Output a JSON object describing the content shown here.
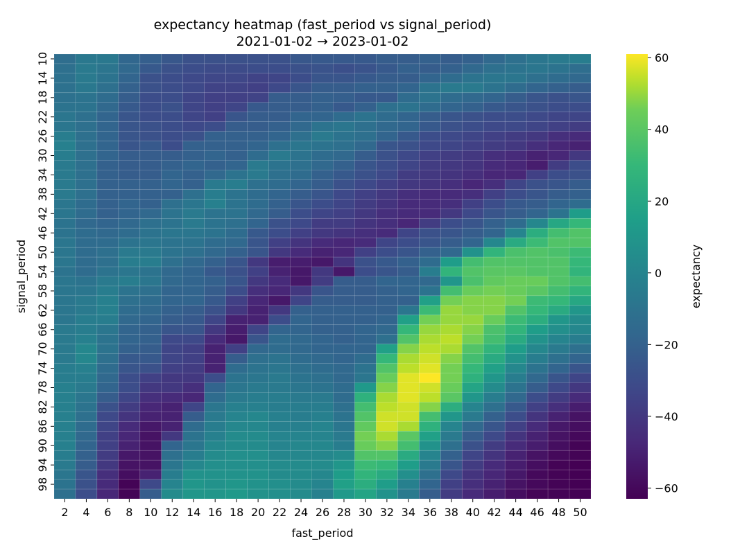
{
  "chart_data": {
    "type": "heatmap",
    "title": "expectancy heatmap (fast_period vs signal_period)",
    "subtitle": "2021-01-02 → 2023-01-02",
    "xlabel": "fast_period",
    "ylabel": "signal_period",
    "colorbar_label": "expectancy",
    "colormap": "viridis",
    "zlim": [
      -63,
      61
    ],
    "colorbar_ticks": [
      60,
      40,
      20,
      0,
      -20,
      -40,
      -60
    ],
    "colorbar_tick_labels": [
      "60",
      "40",
      "20",
      "0",
      "−20",
      "−40",
      "−60"
    ],
    "x": [
      2,
      4,
      6,
      8,
      10,
      12,
      14,
      16,
      18,
      20,
      22,
      24,
      26,
      28,
      30,
      32,
      34,
      36,
      38,
      40,
      42,
      44,
      46,
      48,
      50
    ],
    "y": [
      10,
      12,
      14,
      16,
      18,
      20,
      22,
      24,
      26,
      28,
      30,
      32,
      34,
      36,
      38,
      40,
      42,
      44,
      46,
      48,
      50,
      52,
      54,
      56,
      58,
      60,
      62,
      64,
      66,
      68,
      70,
      72,
      74,
      76,
      78,
      80,
      82,
      84,
      86,
      88,
      90,
      92,
      94,
      96,
      98,
      100
    ],
    "y_tick_labels": [
      "10",
      "14",
      "18",
      "22",
      "26",
      "30",
      "34",
      "38",
      "42",
      "46",
      "50",
      "54",
      "58",
      "62",
      "66",
      "70",
      "74",
      "78",
      "82",
      "86",
      "90",
      "94",
      "98"
    ],
    "values": [
      [
        -13,
        -7,
        -7,
        -17,
        -21,
        -25,
        -28,
        -28,
        -28,
        -28,
        -28,
        -25,
        -24,
        -24,
        -24,
        -22,
        -22,
        -20,
        -22,
        -20,
        -16,
        -12,
        -8,
        -6,
        -4
      ],
      [
        -12,
        -6,
        -9,
        -16,
        -24,
        -28,
        -30,
        -31,
        -31,
        -30,
        -30,
        -28,
        -27,
        -29,
        -27,
        -24,
        -20,
        -22,
        -20,
        -16,
        -12,
        -10,
        -8,
        -10,
        -13
      ],
      [
        -11,
        -6,
        -10,
        -18,
        -28,
        -30,
        -32,
        -33,
        -33,
        -35,
        -34,
        -30,
        -26,
        -26,
        -24,
        -22,
        -22,
        -18,
        -14,
        -10,
        -8,
        -8,
        -12,
        -14,
        -16
      ],
      [
        -11,
        -7,
        -12,
        -20,
        -28,
        -30,
        -32,
        -35,
        -35,
        -36,
        -32,
        -26,
        -22,
        -22,
        -20,
        -20,
        -18,
        -10,
        -6,
        -6,
        -10,
        -14,
        -18,
        -20,
        -22
      ],
      [
        -11,
        -10,
        -14,
        -22,
        -30,
        -30,
        -34,
        -36,
        -36,
        -35,
        -22,
        -22,
        -20,
        -21,
        -24,
        -24,
        -14,
        -10,
        -14,
        -16,
        -18,
        -22,
        -26,
        -28,
        -26
      ],
      [
        -10,
        -10,
        -16,
        -24,
        -30,
        -28,
        -34,
        -36,
        -34,
        -24,
        -22,
        -22,
        -20,
        -24,
        -20,
        -12,
        -10,
        -14,
        -18,
        -20,
        -24,
        -26,
        -28,
        -30,
        -30
      ],
      [
        -8,
        -12,
        -18,
        -26,
        -30,
        -30,
        -34,
        -36,
        -26,
        -22,
        -22,
        -18,
        -18,
        -14,
        -10,
        -14,
        -18,
        -22,
        -26,
        -28,
        -30,
        -30,
        -32,
        -34,
        -34
      ],
      [
        -8,
        -12,
        -18,
        -26,
        -28,
        -30,
        -32,
        -30,
        -22,
        -22,
        -20,
        -16,
        -10,
        -8,
        -12,
        -16,
        -18,
        -24,
        -28,
        -30,
        -32,
        -32,
        -34,
        -36,
        -38
      ],
      [
        -4,
        -12,
        -18,
        -26,
        -28,
        -30,
        -28,
        -20,
        -20,
        -20,
        -18,
        -12,
        -6,
        -10,
        -12,
        -18,
        -24,
        -30,
        -32,
        -34,
        -36,
        -38,
        -40,
        -44,
        -46
      ],
      [
        -2,
        -12,
        -18,
        -26,
        -24,
        -30,
        -20,
        -20,
        -20,
        -18,
        -12,
        -8,
        -10,
        -12,
        -16,
        -26,
        -28,
        -32,
        -34,
        -36,
        -38,
        -40,
        -44,
        -48,
        -50
      ],
      [
        -4,
        -12,
        -18,
        -22,
        -22,
        -22,
        -20,
        -18,
        -20,
        -14,
        -6,
        -10,
        -14,
        -16,
        -22,
        -28,
        -32,
        -36,
        -38,
        -40,
        -44,
        -46,
        -50,
        -48,
        -40
      ],
      [
        -6,
        -12,
        -20,
        -22,
        -22,
        -20,
        -18,
        -20,
        -18,
        -6,
        -10,
        -12,
        -16,
        -20,
        -26,
        -30,
        -34,
        -38,
        -40,
        -42,
        -46,
        -48,
        -52,
        -38,
        -30
      ],
      [
        -6,
        -12,
        -20,
        -22,
        -22,
        -18,
        -20,
        -16,
        -10,
        -6,
        -12,
        -14,
        -20,
        -24,
        -28,
        -32,
        -38,
        -40,
        -42,
        -44,
        -48,
        -48,
        -36,
        -30,
        -28
      ],
      [
        -6,
        -12,
        -20,
        -20,
        -20,
        -18,
        -20,
        -6,
        -4,
        -12,
        -14,
        -18,
        -22,
        -28,
        -32,
        -36,
        -40,
        -42,
        -44,
        -48,
        -44,
        -34,
        -28,
        -26,
        -22
      ],
      [
        -6,
        -12,
        -20,
        -20,
        -20,
        -20,
        -12,
        -4,
        -10,
        -14,
        -18,
        -22,
        -26,
        -32,
        -36,
        -40,
        -44,
        -46,
        -46,
        -44,
        -36,
        -30,
        -26,
        -22,
        -20
      ],
      [
        -8,
        -14,
        -20,
        -18,
        -20,
        -12,
        -8,
        -2,
        -10,
        -14,
        -20,
        -26,
        -30,
        -34,
        -38,
        -42,
        -46,
        -46,
        -44,
        -36,
        -30,
        -24,
        -22,
        -18,
        -14
      ],
      [
        -8,
        -14,
        -20,
        -18,
        -16,
        -10,
        -6,
        -10,
        -10,
        -16,
        -22,
        -30,
        -34,
        -36,
        -40,
        -44,
        -46,
        -46,
        -40,
        -32,
        -26,
        -22,
        -18,
        -10,
        14
      ],
      [
        -10,
        -16,
        -18,
        -16,
        -12,
        -10,
        -6,
        -10,
        -12,
        -18,
        -28,
        -32,
        -38,
        -38,
        -42,
        -44,
        -48,
        -38,
        -30,
        -26,
        -20,
        -14,
        2,
        20,
        30
      ],
      [
        -10,
        -14,
        -16,
        -14,
        -10,
        -8,
        -8,
        -10,
        -14,
        -24,
        -30,
        -36,
        -40,
        -42,
        -44,
        -46,
        -34,
        -28,
        -26,
        -22,
        -18,
        0,
        24,
        34,
        38
      ],
      [
        -8,
        -14,
        -14,
        -10,
        -8,
        -10,
        -10,
        -14,
        -16,
        -26,
        -36,
        -42,
        -46,
        -48,
        -46,
        -34,
        -30,
        -26,
        -22,
        -18,
        2,
        22,
        32,
        38,
        38
      ],
      [
        -8,
        -14,
        -12,
        -6,
        -6,
        -10,
        -12,
        -16,
        -20,
        -26,
        -40,
        -46,
        -50,
        -48,
        -36,
        -30,
        -26,
        -20,
        -16,
        8,
        28,
        36,
        38,
        36,
        32
      ],
      [
        -8,
        -14,
        -12,
        -4,
        -4,
        -12,
        -16,
        -20,
        -26,
        -40,
        -52,
        -52,
        -54,
        -42,
        -28,
        -24,
        -20,
        -14,
        14,
        34,
        38,
        38,
        38,
        38,
        30
      ],
      [
        -10,
        -14,
        -10,
        -8,
        -10,
        -16,
        -18,
        -24,
        -28,
        -36,
        -50,
        -54,
        -40,
        -54,
        -30,
        -26,
        -22,
        -4,
        28,
        38,
        40,
        40,
        38,
        38,
        28
      ],
      [
        -8,
        -10,
        -6,
        -4,
        -8,
        -16,
        -18,
        -20,
        -26,
        -40,
        -46,
        -54,
        -38,
        -22,
        -22,
        -18,
        -18,
        -16,
        10,
        36,
        42,
        44,
        44,
        38,
        34
      ],
      [
        -8,
        -8,
        -4,
        -10,
        -12,
        -18,
        -18,
        -22,
        -30,
        -44,
        -48,
        -40,
        -26,
        -22,
        -22,
        -20,
        -18,
        -10,
        34,
        44,
        46,
        44,
        40,
        34,
        28
      ],
      [
        -8,
        -6,
        -2,
        -12,
        -14,
        -18,
        -18,
        -24,
        -36,
        -48,
        -54,
        -34,
        -22,
        -22,
        -22,
        -20,
        -20,
        16,
        46,
        48,
        48,
        46,
        32,
        30,
        20
      ],
      [
        -8,
        -6,
        -2,
        -14,
        -16,
        -20,
        -22,
        -28,
        -40,
        -50,
        -40,
        -20,
        -20,
        -20,
        -20,
        -20,
        -8,
        32,
        50,
        48,
        48,
        38,
        30,
        22,
        10
      ],
      [
        -8,
        -4,
        -4,
        -16,
        -18,
        -22,
        -24,
        -34,
        -50,
        -50,
        -30,
        -18,
        -20,
        -20,
        -20,
        -18,
        16,
        46,
        50,
        50,
        44,
        32,
        24,
        10,
        4
      ],
      [
        -6,
        -4,
        -8,
        -18,
        -20,
        -26,
        -26,
        -40,
        -52,
        -34,
        -18,
        -18,
        -20,
        -20,
        -18,
        -16,
        30,
        50,
        52,
        48,
        36,
        28,
        14,
        6,
        2
      ],
      [
        -6,
        -2,
        -10,
        -18,
        -20,
        -32,
        -32,
        -46,
        -54,
        -26,
        -14,
        -16,
        -18,
        -20,
        -18,
        -12,
        38,
        52,
        54,
        46,
        34,
        22,
        8,
        0,
        -4
      ],
      [
        -6,
        2,
        -10,
        -20,
        -22,
        -34,
        -36,
        -50,
        -36,
        -16,
        -14,
        -16,
        -18,
        -18,
        -18,
        16,
        48,
        54,
        52,
        38,
        28,
        14,
        2,
        -6,
        -12
      ],
      [
        -6,
        2,
        -12,
        -24,
        -24,
        -34,
        -36,
        -50,
        -22,
        -12,
        -10,
        -14,
        -16,
        -18,
        -14,
        30,
        52,
        56,
        48,
        34,
        22,
        8,
        -4,
        -12,
        -18
      ],
      [
        -4,
        -2,
        -14,
        -26,
        -28,
        -36,
        -38,
        -50,
        -14,
        -10,
        -8,
        -12,
        -14,
        -16,
        -10,
        38,
        54,
        58,
        46,
        30,
        16,
        2,
        -10,
        -18,
        -26
      ],
      [
        -4,
        -4,
        -16,
        -30,
        -36,
        -40,
        -40,
        -30,
        -10,
        -8,
        -6,
        -10,
        -12,
        -16,
        -8,
        44,
        58,
        61,
        46,
        26,
        10,
        -4,
        -16,
        -26,
        -34
      ],
      [
        -2,
        -6,
        -18,
        -30,
        -40,
        -40,
        -44,
        -18,
        -8,
        -6,
        -6,
        -8,
        -10,
        -14,
        12,
        48,
        58,
        56,
        44,
        18,
        4,
        -10,
        -22,
        -32,
        -40
      ],
      [
        -2,
        -8,
        -22,
        -34,
        -44,
        -46,
        -48,
        -14,
        -6,
        -4,
        -4,
        -6,
        -6,
        -14,
        26,
        52,
        58,
        54,
        40,
        10,
        -4,
        -16,
        -30,
        -38,
        -46
      ],
      [
        -2,
        -10,
        -28,
        -38,
        -48,
        -50,
        -34,
        -8,
        -2,
        -2,
        -4,
        -4,
        -4,
        -12,
        34,
        54,
        56,
        48,
        24,
        0,
        -12,
        -24,
        -36,
        -44,
        -52
      ],
      [
        -2,
        -12,
        -32,
        -42,
        -50,
        -50,
        -22,
        -6,
        0,
        2,
        -2,
        -4,
        -2,
        -10,
        38,
        56,
        56,
        34,
        10,
        -6,
        -20,
        -30,
        -42,
        -50,
        -56
      ],
      [
        -2,
        -14,
        -34,
        -46,
        -54,
        -50,
        -14,
        -4,
        2,
        2,
        -2,
        -2,
        0,
        -8,
        42,
        56,
        52,
        26,
        0,
        -16,
        -26,
        -36,
        -46,
        -54,
        -58
      ],
      [
        -2,
        -16,
        -36,
        -48,
        -56,
        -40,
        -10,
        -2,
        4,
        4,
        0,
        0,
        0,
        -6,
        46,
        52,
        40,
        16,
        -6,
        -22,
        -32,
        -42,
        -50,
        -56,
        -60
      ],
      [
        -2,
        -18,
        -36,
        -50,
        -56,
        -18,
        -8,
        2,
        4,
        4,
        0,
        2,
        2,
        -4,
        44,
        48,
        34,
        8,
        -12,
        -28,
        -38,
        -46,
        -52,
        -58,
        -62
      ],
      [
        -4,
        -20,
        -38,
        -54,
        -56,
        -12,
        -4,
        4,
        6,
        6,
        2,
        2,
        2,
        4,
        38,
        38,
        22,
        0,
        -20,
        -34,
        -42,
        -50,
        -56,
        -60,
        -62
      ],
      [
        -6,
        -22,
        -40,
        -56,
        -56,
        -8,
        2,
        6,
        6,
        6,
        4,
        4,
        4,
        10,
        32,
        30,
        14,
        -6,
        -26,
        -38,
        -46,
        -52,
        -58,
        -62,
        -63
      ],
      [
        -8,
        -26,
        -44,
        -58,
        -50,
        -4,
        8,
        8,
        8,
        8,
        4,
        4,
        2,
        14,
        28,
        22,
        6,
        -12,
        -32,
        -42,
        -48,
        -54,
        -60,
        -62,
        -63
      ],
      [
        -10,
        -28,
        -46,
        -62,
        -32,
        0,
        10,
        8,
        10,
        8,
        6,
        4,
        0,
        16,
        24,
        14,
        -2,
        -18,
        -36,
        -44,
        -50,
        -56,
        -60,
        -62,
        -63
      ],
      [
        -12,
        -30,
        -48,
        -62,
        -22,
        4,
        10,
        10,
        12,
        8,
        6,
        4,
        -2,
        12,
        18,
        8,
        -6,
        -22,
        -38,
        -46,
        -52,
        -58,
        -62,
        -62,
        -63
      ]
    ]
  }
}
